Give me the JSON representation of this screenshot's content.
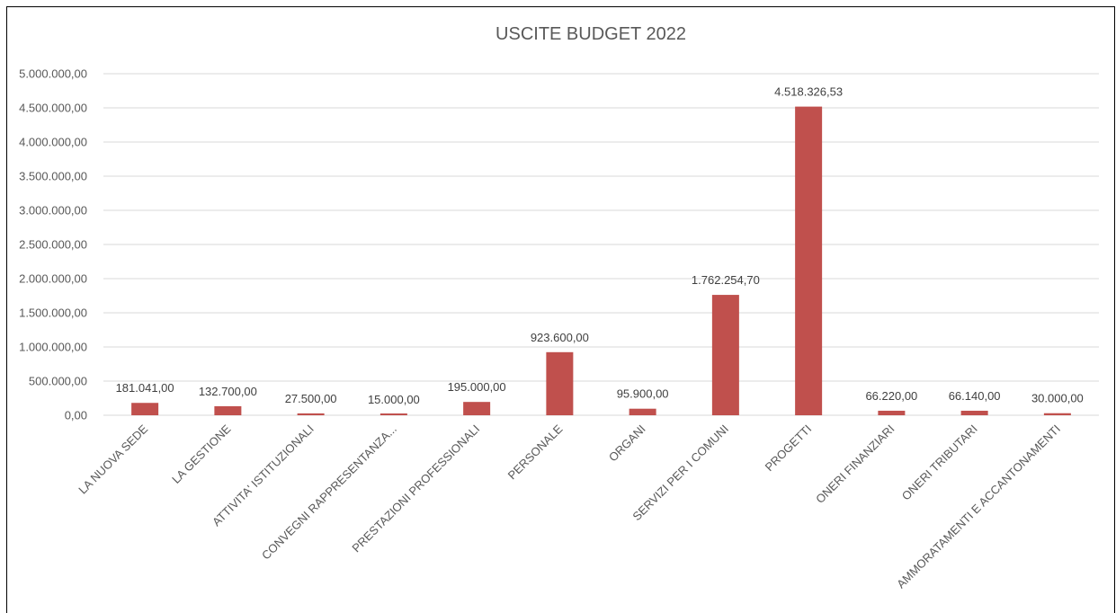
{
  "chart_data": {
    "type": "bar",
    "title": "USCITE BUDGET 2022",
    "xlabel": "",
    "ylabel": "",
    "ylim": [
      0,
      5000000
    ],
    "y_ticks": [
      {
        "value": 0,
        "label": "0,00"
      },
      {
        "value": 500000,
        "label": "500.000,00"
      },
      {
        "value": 1000000,
        "label": "1.000.000,00"
      },
      {
        "value": 1500000,
        "label": "1.500.000,00"
      },
      {
        "value": 2000000,
        "label": "2.000.000,00"
      },
      {
        "value": 2500000,
        "label": "2.500.000,00"
      },
      {
        "value": 3000000,
        "label": "3.000.000,00"
      },
      {
        "value": 3500000,
        "label": "3.500.000,00"
      },
      {
        "value": 4000000,
        "label": "4.000.000,00"
      },
      {
        "value": 4500000,
        "label": "4.500.000,00"
      },
      {
        "value": 5000000,
        "label": "5.000.000,00"
      }
    ],
    "categories": [
      "LA NUOVA SEDE",
      "LA GESTIONE",
      "ATTIVITA' ISTITUZIONALI",
      "CONVEGNI RAPPRESENTANZA...",
      "PRESTAZIONI PROFESSIONALI",
      "PERSONALE",
      "ORGANI",
      "SERVIZI PER I COMUNI",
      "PROGETTI",
      "ONERI FINANZIARI",
      "ONERI TRIBUTARI",
      "AMMORATAMENTI E ACCANTONAMENTI"
    ],
    "values": [
      181041,
      132700,
      27500,
      15000,
      195000,
      923600,
      95900,
      1762254.7,
      4518326.53,
      66220,
      66140,
      30000
    ],
    "value_labels": [
      "181.041,00",
      "132.700,00",
      "27.500,00",
      "15.000,00",
      "195.000,00",
      "923.600,00",
      "95.900,00",
      "1.762.254,70",
      "4.518.326,53",
      "66.220,00",
      "66.140,00",
      "30.000,00"
    ],
    "bar_color": "#c0504d",
    "grid": true,
    "legend": "none"
  }
}
